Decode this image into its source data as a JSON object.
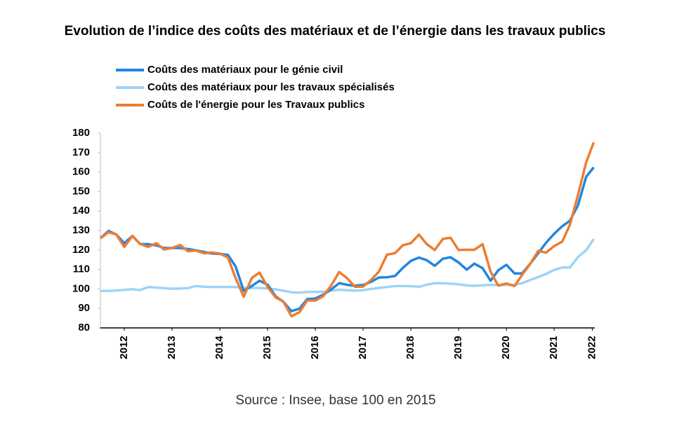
{
  "chart_data": {
    "type": "line",
    "title": "Evolution de l’indice des coûts des matériaux et de l’énergie dans les travaux publics",
    "source": "Source : Insee, base 100 en 2015",
    "x": [
      2012,
      2012.17,
      2012.33,
      2012.5,
      2012.67,
      2012.83,
      2013,
      2013.17,
      2013.33,
      2013.5,
      2013.67,
      2013.83,
      2014,
      2014.17,
      2014.33,
      2014.5,
      2014.67,
      2014.83,
      2015,
      2015.17,
      2015.33,
      2015.5,
      2015.67,
      2015.83,
      2016,
      2016.17,
      2016.33,
      2016.5,
      2016.67,
      2016.83,
      2017,
      2017.17,
      2017.33,
      2017.5,
      2017.67,
      2017.83,
      2018,
      2018.17,
      2018.33,
      2018.5,
      2018.67,
      2018.83,
      2019,
      2019.17,
      2019.33,
      2019.5,
      2019.67,
      2019.83,
      2020,
      2020.17,
      2020.33,
      2020.5,
      2020.67,
      2020.83,
      2021,
      2021.17,
      2021.33,
      2021.5,
      2021.67,
      2021.83,
      2022,
      2022.17,
      2022.33
    ],
    "series": [
      {
        "name": "Coûts des matériaux pour le génie civil",
        "color": "#1f87e0",
        "values": [
          126,
          129.8,
          128,
          123.5,
          127.2,
          123.1,
          123,
          122.4,
          121,
          121,
          121,
          120.5,
          119.8,
          119,
          118.2,
          118,
          117.5,
          111.6,
          99,
          101.5,
          104.2,
          102.2,
          96.2,
          93.4,
          88.6,
          89.9,
          94.8,
          95.1,
          97.1,
          99.7,
          103,
          102.1,
          101.7,
          102,
          103.7,
          105.9,
          106,
          106.7,
          110.8,
          114.4,
          116.1,
          114.8,
          111.9,
          115.5,
          116.3,
          113.6,
          109.9,
          113,
          110.7,
          104.2,
          109.6,
          112.4,
          108,
          108,
          113,
          118.4,
          123.7,
          128.3,
          132.2,
          135,
          143,
          157.6,
          162.4
        ]
      },
      {
        "name": "Coûts des matériaux pour les travaux spécialisés",
        "color": "#9fd3f7",
        "values": [
          99,
          99,
          99.2,
          99.5,
          99.9,
          99.4,
          101,
          100.7,
          100.4,
          100.1,
          100.2,
          100.4,
          101.5,
          101.1,
          101,
          101,
          101,
          101,
          100.6,
          100.5,
          100.5,
          100.2,
          99.8,
          99.1,
          98.3,
          98.1,
          98.4,
          98.5,
          98.5,
          99.1,
          99.6,
          99.3,
          99.1,
          99.4,
          100,
          100.5,
          101,
          101.5,
          101.5,
          101.4,
          101.1,
          102.2,
          103,
          103,
          102.7,
          102.4,
          101.8,
          101.6,
          101.9,
          102,
          102,
          102,
          102,
          103,
          104.6,
          106.1,
          107.7,
          109.8,
          111,
          111,
          116.4,
          119.9,
          125.6
        ]
      },
      {
        "name": "Coûts de l'énergie pour les Travaux publics",
        "color": "#ed7d31",
        "values": [
          126,
          129.1,
          128.1,
          121.6,
          127.2,
          123.1,
          121.6,
          123.5,
          120.3,
          121,
          122.6,
          119.4,
          119.7,
          118.3,
          118.7,
          118.2,
          116.1,
          105.6,
          96,
          105.6,
          108.4,
          101,
          95.6,
          93.5,
          86,
          88.1,
          94.1,
          94,
          96.4,
          101.7,
          108.7,
          105.4,
          101.1,
          101.2,
          104.7,
          108.9,
          117.6,
          118.4,
          122.4,
          123.5,
          127.9,
          123.1,
          120,
          125.7,
          126.3,
          120,
          120.1,
          120.1,
          123,
          108.8,
          101.7,
          102.8,
          101.5,
          107.2,
          112.9,
          119.6,
          118.6,
          122,
          124.3,
          132.9,
          148.3,
          165,
          175.3
        ]
      }
    ],
    "xlim": [
      2012,
      2022.35
    ],
    "xticks": [
      {
        "value": 2012.5,
        "label": "2012"
      },
      {
        "value": 2013.5,
        "label": "2013"
      },
      {
        "value": 2014.5,
        "label": "2014"
      },
      {
        "value": 2015.5,
        "label": "2015"
      },
      {
        "value": 2016.5,
        "label": "2016"
      },
      {
        "value": 2017.5,
        "label": "2017"
      },
      {
        "value": 2018.5,
        "label": "2018"
      },
      {
        "value": 2019.5,
        "label": "2019"
      },
      {
        "value": 2020.5,
        "label": "2020"
      },
      {
        "value": 2021.5,
        "label": "2021"
      },
      {
        "value": 2022.3,
        "label": "2022"
      }
    ],
    "ylim": [
      80,
      180
    ],
    "yticks": [
      80,
      90,
      100,
      110,
      120,
      130,
      140,
      150,
      160,
      170,
      180
    ],
    "grid": false
  }
}
